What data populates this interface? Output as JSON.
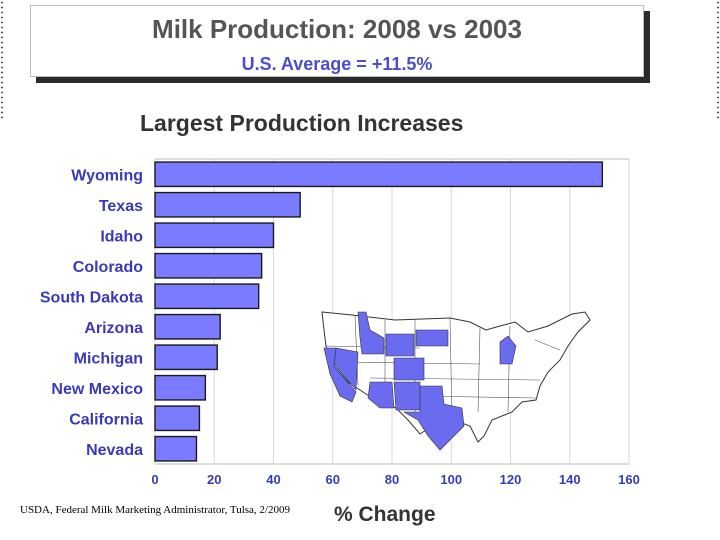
{
  "slide": {
    "title": "Milk Production: 2008 vs 2003",
    "subtitle": "U.S. Average = +11.5%",
    "source": "USDA, Federal Milk Marketing Administrator, Tulsa, 2/2009"
  },
  "colors": {
    "bar": "#7b7bff",
    "bar_border": "#1a1a1a",
    "grid": "#d8d8d8",
    "label": "#3a3ab8",
    "subtitle": "#4d4dcc",
    "map_highlight": "#6b6bef"
  },
  "chart_data": {
    "type": "bar",
    "orientation": "horizontal",
    "title": "Largest Production Increases",
    "xlabel": "% Change",
    "categories": [
      "Wyoming",
      "Texas",
      "Idaho",
      "Colorado",
      "South Dakota",
      "Arizona",
      "Michigan",
      "New Mexico",
      "California",
      "Nevada"
    ],
    "values": [
      151,
      49,
      40,
      36,
      35,
      22,
      21,
      17,
      15,
      14
    ],
    "xlim": [
      0,
      160
    ],
    "xticks": [
      0,
      20,
      40,
      60,
      80,
      100,
      120,
      140,
      160
    ],
    "grid": true,
    "inset": "U.S. map with highlighted states"
  }
}
